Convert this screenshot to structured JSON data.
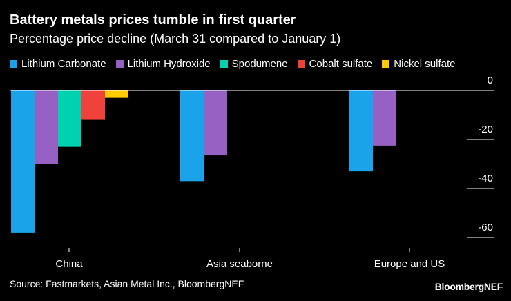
{
  "chart_data": {
    "type": "bar",
    "title": "Battery metals prices tumble in first quarter",
    "subtitle": "Percentage price decline (March 31 compared to January 1)",
    "categories": [
      "China",
      "Asia seaborne",
      "Europe and US"
    ],
    "series": [
      {
        "name": "Lithium Carbonate",
        "color": "#1aa3e8",
        "values": [
          -58,
          -37,
          -33
        ]
      },
      {
        "name": "Lithium Hydroxide",
        "color": "#9661c2",
        "values": [
          -30,
          -26.5,
          -22.5
        ]
      },
      {
        "name": "Spodumene",
        "color": "#00d1b0",
        "values": [
          -23,
          null,
          null
        ]
      },
      {
        "name": "Cobalt sulfate",
        "color": "#f0423a",
        "values": [
          -12,
          null,
          null
        ]
      },
      {
        "name": "Nickel sulfate",
        "color": "#ffcb05",
        "values": [
          -3,
          null,
          null
        ]
      }
    ],
    "ylim": [
      -60,
      0
    ],
    "yticks": [
      0,
      -20,
      -40,
      -60
    ],
    "ytick_labels": [
      "0",
      "-20",
      "-40",
      "-60"
    ],
    "ylabel": "",
    "xlabel": "",
    "legend": "top-left",
    "grid": false
  },
  "source": "Source: Fastmarkets, Asian Metal Inc., BloombergNEF",
  "brand": "BloombergNEF"
}
